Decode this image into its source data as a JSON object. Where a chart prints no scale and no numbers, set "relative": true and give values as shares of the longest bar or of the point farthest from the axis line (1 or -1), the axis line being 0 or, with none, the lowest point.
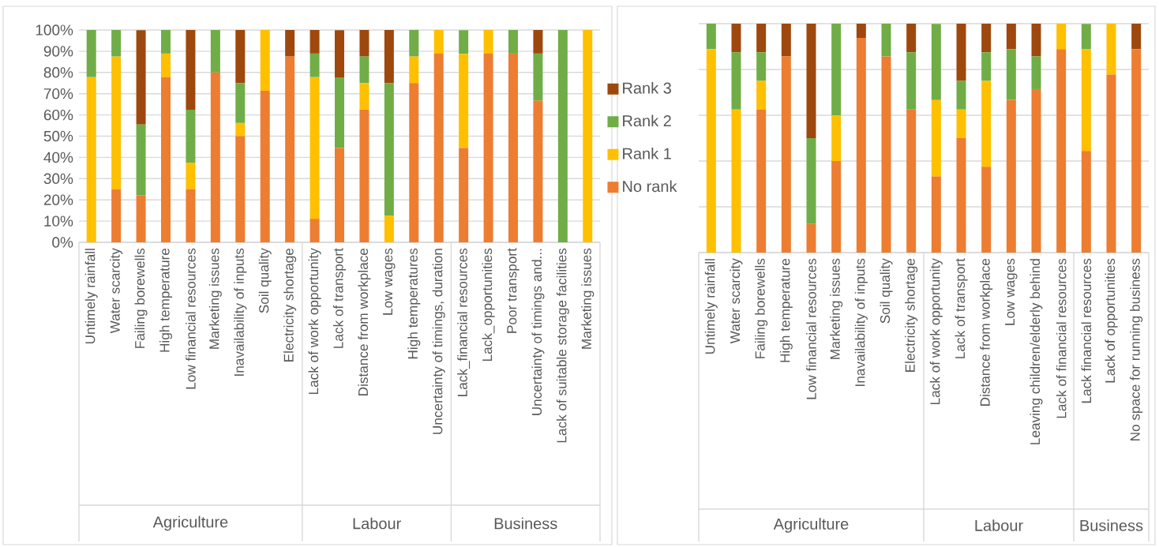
{
  "chart_data": [
    {
      "type": "bar",
      "stacked": true,
      "grid": "y",
      "categories": [
        "Untimely rainfall",
        "Water scarcity",
        "Failing borewells",
        "High temperature",
        "Low financial resources",
        "Marketing issues",
        "Inavailability of inputs",
        "Soil quality",
        "Electricity shortage",
        "Lack of work opportunity",
        "Lack of transport",
        "Distance from workplace",
        "Low wages",
        "High temperatures",
        "Uncertainty of timings, duration",
        "Lack_financial resources",
        "Lack_opportunities",
        "Poor transport",
        "Uncertainty of timings and...",
        "Lack of suitable storage facilities",
        "Marketing issues"
      ],
      "series": [
        {
          "color": "#ed7d31",
          "values": [
            0,
            25,
            22.2,
            77.8,
            25,
            80,
            50,
            71.4,
            87.5,
            11.1,
            44.4,
            62.5,
            0,
            75,
            88.9,
            44.4,
            88.9,
            88.9,
            66.7,
            0,
            0
          ]
        },
        {
          "color": "#ffc000",
          "values": [
            77.8,
            62.5,
            0,
            11.1,
            12.5,
            0,
            6.2,
            28.6,
            0,
            66.7,
            0,
            12.5,
            12.5,
            12.5,
            11.1,
            44.4,
            11.1,
            0,
            0,
            0,
            100
          ]
        },
        {
          "color": "#70ad47",
          "values": [
            22.2,
            12.5,
            33.3,
            11.1,
            25,
            20,
            18.8,
            0,
            0,
            11.1,
            33.3,
            12.5,
            62.5,
            12.5,
            0,
            11.1,
            0,
            11.1,
            22.2,
            100,
            0
          ]
        },
        {
          "color": "#9e480e",
          "values": [
            0,
            0,
            44.4,
            0,
            37.5,
            0,
            25,
            0,
            12.5,
            11.1,
            22.2,
            12.5,
            25,
            0,
            0,
            0,
            0,
            0,
            11.1,
            0,
            0
          ]
        }
      ],
      "ylim": [
        0,
        100
      ],
      "yticks": [
        {
          "value": 0,
          "label": "0%"
        },
        {
          "value": 10,
          "label": "10%"
        },
        {
          "value": 20,
          "label": "20%"
        },
        {
          "value": 30,
          "label": "30%"
        },
        {
          "value": 40,
          "label": "40%"
        },
        {
          "value": 50,
          "label": "50%"
        },
        {
          "value": 60,
          "label": "60%"
        },
        {
          "value": 70,
          "label": "70%"
        },
        {
          "value": 80,
          "label": "80%"
        },
        {
          "value": 90,
          "label": "90%"
        },
        {
          "value": 100,
          "label": "100%"
        }
      ],
      "annotations": [
        "Agriculture",
        "Labour",
        "Business"
      ]
    },
    {
      "type": "bar",
      "stacked": true,
      "relative": true,
      "grid": "y",
      "legend": "left",
      "categories": [
        "Untimely rainfall",
        "Water scarcity",
        "Failing borewells",
        "High temperature",
        "Low financial resources",
        "Marketing issues",
        "Inavailability of inputs",
        "Soil quality",
        "Electricity shortage",
        "Lack of work opportunity",
        "Lack of transport",
        "Distance from workplace",
        "Low wages",
        "Leaving children/elderly behind",
        "Lack of financial resources",
        "Lack financial resources",
        "Lack of opportunities",
        "No space for running business"
      ],
      "series": [
        {
          "name": "No rank",
          "color": "#ed7d31",
          "values": [
            0,
            0,
            0.625,
            0.857,
            0.125,
            0.4,
            0.938,
            0.857,
            0.625,
            0.333,
            0.5,
            0.375,
            0.667,
            0.714,
            0.889,
            0.444,
            0.778,
            0.889
          ]
        },
        {
          "name": "Rank 1",
          "color": "#ffc000",
          "values": [
            0.889,
            0.625,
            0.125,
            0,
            0,
            0.2,
            0,
            0,
            0,
            0.333,
            0.125,
            0.375,
            0,
            0,
            0.111,
            0.444,
            0.222,
            0
          ]
        },
        {
          "name": "Rank 2",
          "color": "#70ad47",
          "values": [
            0.111,
            0.25,
            0.125,
            0,
            0.375,
            0.4,
            0,
            0.143,
            0.25,
            0.333,
            0.125,
            0.125,
            0.222,
            0.143,
            0,
            0.111,
            0,
            0
          ]
        },
        {
          "name": "Rank 3",
          "color": "#9e480e",
          "values": [
            0,
            0.125,
            0.125,
            0.143,
            0.5,
            0,
            0.062,
            0,
            0.125,
            0,
            0.25,
            0.125,
            0.111,
            0.143,
            0,
            0,
            0,
            0.111
          ]
        }
      ],
      "annotations": [
        "Agriculture",
        "Labour",
        "Business"
      ]
    }
  ]
}
